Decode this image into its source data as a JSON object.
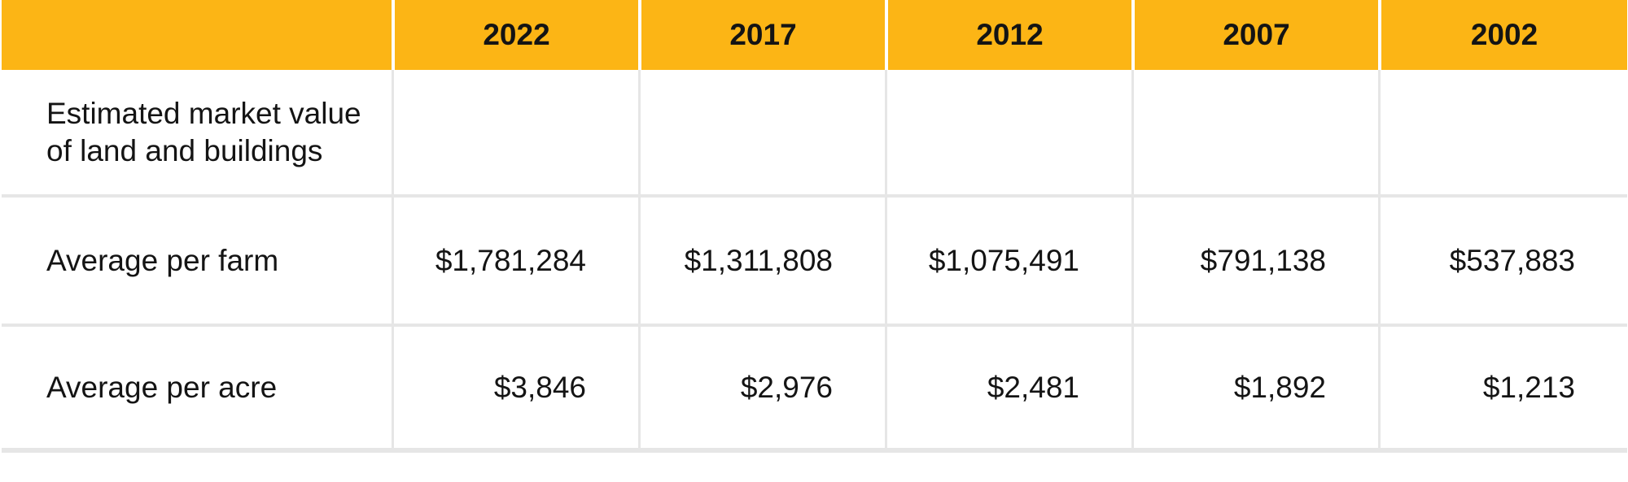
{
  "colors": {
    "header_bg": "#fcb515",
    "header_divider": "#ffffff",
    "divider": "#e6e6e6",
    "text": "#141414",
    "row_bg": "#ffffff"
  },
  "table": {
    "corner_label": "",
    "columns": [
      "2022",
      "2017",
      "2012",
      "2007",
      "2002"
    ],
    "rows": [
      {
        "label": "Estimated market value\nof land and buildings",
        "values": [
          "",
          "",
          "",
          "",
          ""
        ]
      },
      {
        "label": "Average per farm",
        "values": [
          "$1,781,284",
          "$1,311,808",
          "$1,075,491",
          "$791,138",
          "$537,883"
        ]
      },
      {
        "label": "Average per acre",
        "values": [
          "$3,846",
          "$2,976",
          "$2,481",
          "$1,892",
          "$1,213"
        ]
      }
    ]
  }
}
